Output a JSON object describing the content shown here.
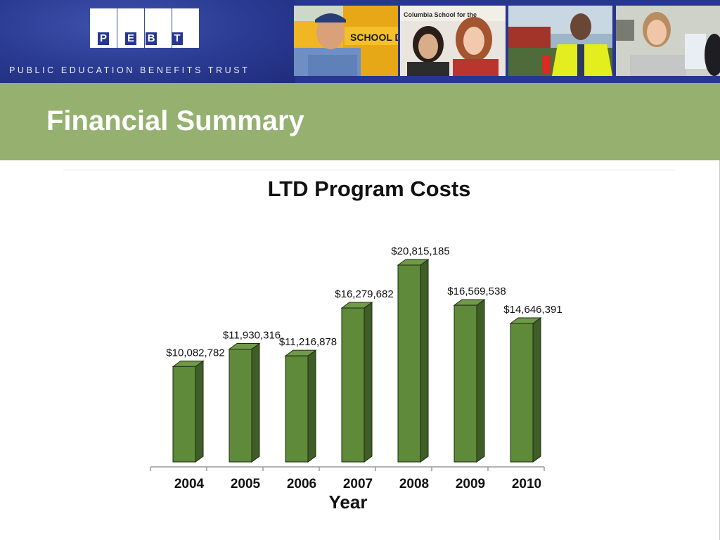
{
  "header": {
    "logo_letters": [
      "P",
      "E",
      "B",
      "T"
    ],
    "tagline": "PUBLIC EDUCATION BENEFITS TRUST",
    "photo_sign_text": "SCHOOL DISTRI",
    "photo_banner_text": "Columbia School for the"
  },
  "page": {
    "title": "Financial Summary"
  },
  "chart_data": {
    "type": "bar",
    "title": "LTD Program Costs",
    "xlabel": "Year",
    "ylabel": "",
    "categories": [
      "2004",
      "2005",
      "2006",
      "2007",
      "2008",
      "2009",
      "2010"
    ],
    "values": [
      10082782,
      11930316,
      11216878,
      16279682,
      20815185,
      16569538,
      14646391
    ],
    "value_labels": [
      "$10,082,782",
      "$11,930,316",
      "$11,216,878",
      "$16,279,682",
      "$20,815,185",
      "$16,569,538",
      "$14,646,391"
    ],
    "ylim": [
      0,
      20815185
    ],
    "grid": false,
    "legend": "none",
    "bar_color": "#5e8a3a",
    "bar_side_color": "#3f5d26",
    "bar_top_color": "#6f9a47"
  },
  "colors": {
    "header_blue": "#27378f",
    "green_band": "#95b06f",
    "title_text": "#ffffff"
  }
}
